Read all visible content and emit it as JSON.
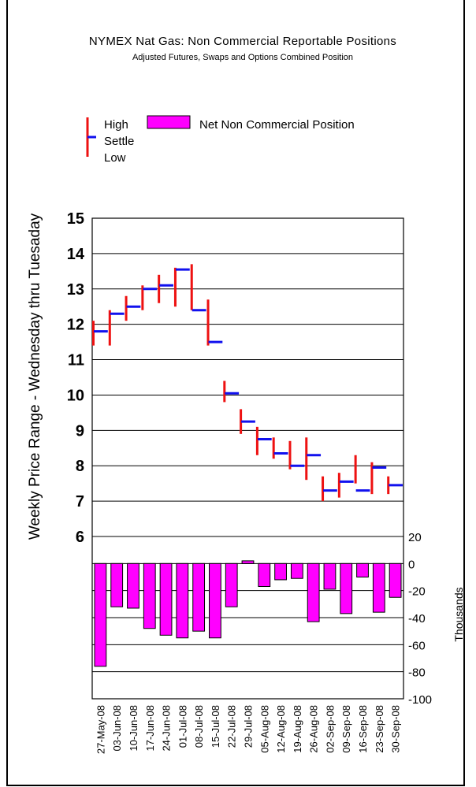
{
  "chart_data": {
    "type": "bar",
    "title": "NYMEX Nat Gas: Non Commercial Reportable Positions",
    "subtitle": "Adjusted Futures, Swaps and Options Combined Position",
    "ylabel": "Weekly Price Range - Wednesday thru Tuesaday",
    "y2label": "Thousands",
    "legend": {
      "hls": [
        "High",
        "Settle",
        "Low"
      ],
      "bar": "Net Non Commercial Position"
    },
    "categories": [
      "27-May-08",
      "03-Jun-08",
      "10-Jun-08",
      "17-Jun-08",
      "24-Jun-08",
      "01-Jul-08",
      "08-Jul-08",
      "15-Jul-08",
      "22-Jul-08",
      "29-Jul-08",
      "05-Aug-08",
      "12-Aug-08",
      "19-Aug-08",
      "26-Aug-08",
      "02-Sep-08",
      "09-Sep-08",
      "16-Sep-08",
      "23-Sep-08",
      "30-Sep-08"
    ],
    "price_ylim": [
      6,
      15
    ],
    "price_ticks": [
      "6",
      "7",
      "8",
      "9",
      "10",
      "11",
      "12",
      "13",
      "14",
      "15"
    ],
    "position_ylim": [
      -100,
      20
    ],
    "position_ticks": [
      "20",
      "0",
      "-20",
      "-40",
      "-60",
      "-80",
      "-100"
    ],
    "series": [
      {
        "name": "High",
        "values": [
          12.1,
          12.4,
          12.8,
          13.1,
          13.4,
          13.6,
          13.7,
          12.7,
          10.4,
          9.6,
          9.1,
          8.8,
          8.7,
          8.8,
          7.7,
          7.8,
          8.3,
          8.1,
          7.7
        ]
      },
      {
        "name": "Low",
        "values": [
          11.4,
          11.4,
          12.1,
          12.4,
          12.6,
          12.5,
          12.4,
          11.4,
          9.8,
          8.9,
          8.3,
          8.2,
          7.9,
          7.6,
          7.0,
          7.1,
          7.5,
          7.2,
          7.2
        ]
      },
      {
        "name": "Settle",
        "values": [
          11.8,
          12.3,
          12.5,
          13.0,
          13.1,
          13.55,
          12.4,
          11.5,
          10.05,
          9.25,
          8.75,
          8.35,
          8.0,
          8.3,
          7.3,
          7.55,
          7.3,
          7.95,
          7.45
        ]
      },
      {
        "name": "Net Non Commercial Position",
        "values": [
          -76,
          -32,
          -33,
          -48,
          -53,
          -55,
          -50,
          -55,
          -32,
          2,
          -17,
          -12,
          -11,
          -43,
          -19,
          -37,
          -10,
          -36,
          -25
        ]
      }
    ],
    "grid": true,
    "colors": {
      "high_low": "#ee1111",
      "settle": "#1111ee",
      "bar": "#ff00ff"
    }
  }
}
